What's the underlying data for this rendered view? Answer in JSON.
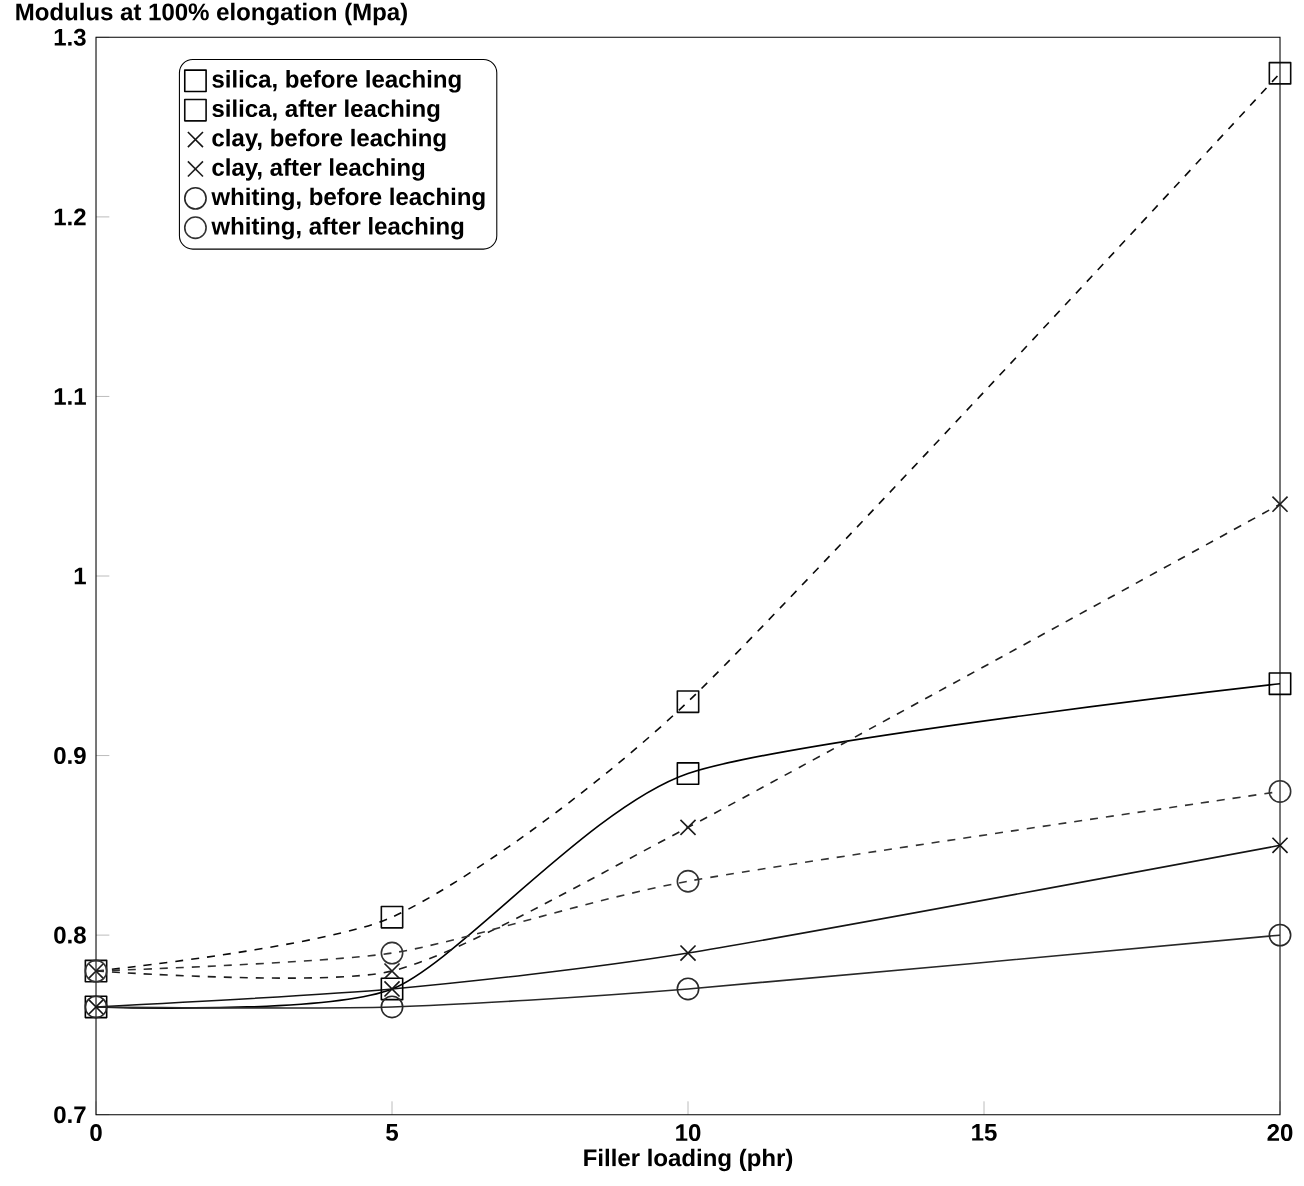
{
  "chart_data": {
    "type": "line",
    "xlabel": "Filler loading (phr)",
    "ylabel": "Modulus at 100% elongation (Mpa)",
    "x": [
      0,
      5,
      10,
      20
    ],
    "xlim": [
      0,
      20
    ],
    "ylim": [
      0.7,
      1.3
    ],
    "xticks": [
      0,
      5,
      10,
      15,
      20
    ],
    "yticks": [
      0.7,
      0.8,
      0.9,
      1,
      1.1,
      1.2,
      1.3
    ],
    "grid": false,
    "legend": "top left",
    "series": [
      {
        "name": "silica, before leaching",
        "color": "#000000",
        "marker": "square",
        "line_style": "solid",
        "values": [
          0.76,
          0.77,
          0.89,
          0.94
        ]
      },
      {
        "name": "silica, after leaching",
        "color": "#0a0a0a",
        "marker": "square",
        "line_style": "dashed",
        "values": [
          0.78,
          0.81,
          0.93,
          1.28
        ]
      },
      {
        "name": "clay, before leaching",
        "color": "#141414",
        "marker": "cross",
        "line_style": "solid",
        "values": [
          0.76,
          0.77,
          0.79,
          0.85
        ]
      },
      {
        "name": "clay, after leaching",
        "color": "#1e1e1e",
        "marker": "cross",
        "line_style": "dashed",
        "values": [
          0.78,
          0.78,
          0.86,
          1.04
        ]
      },
      {
        "name": "whiting, before leaching",
        "color": "#282828",
        "marker": "circle",
        "line_style": "solid",
        "values": [
          0.76,
          0.76,
          0.77,
          0.8
        ]
      },
      {
        "name": "whiting, after leaching",
        "color": "#323232",
        "marker": "circle",
        "line_style": "dashed",
        "values": [
          0.78,
          0.79,
          0.83,
          0.88
        ]
      }
    ]
  }
}
